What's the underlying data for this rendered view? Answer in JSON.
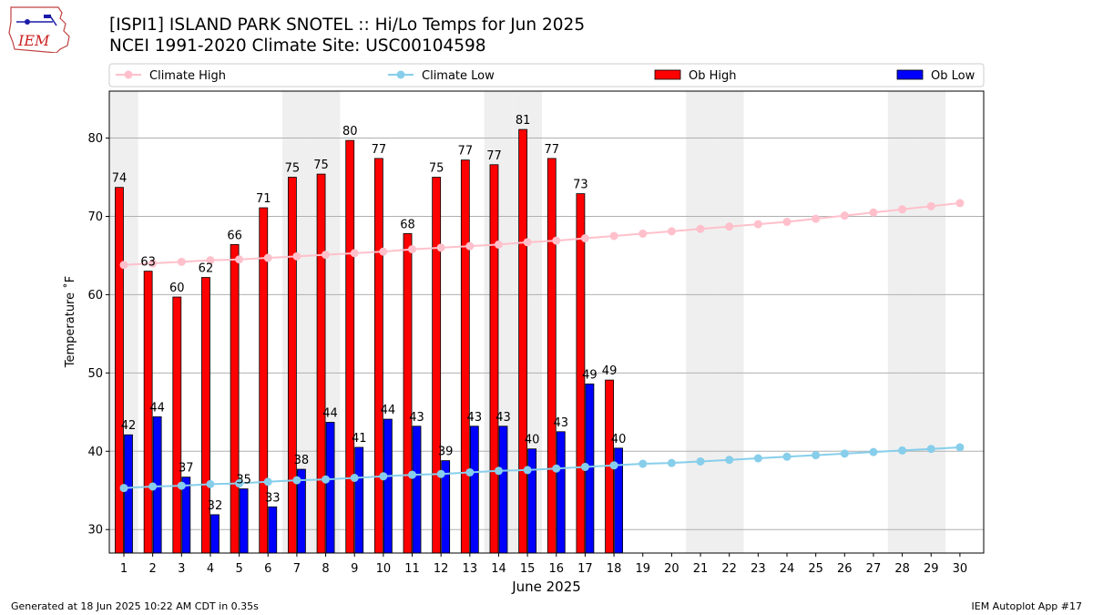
{
  "header": {
    "title_line1": "[ISPI1] ISLAND PARK SNOTEL :: Hi/Lo Temps for Jun 2025",
    "title_line2": "NCEI 1991-2020 Climate Site: USC00104598",
    "logo_text": "IEM"
  },
  "footer": {
    "left": "Generated at 18 Jun 2025 10:22 AM CDT in 0.35s",
    "right": "IEM Autoplot App #17"
  },
  "chart_data": {
    "type": "bar",
    "xlabel": "June 2025",
    "ylabel": "Temperature ˚F",
    "ylim": [
      27,
      86
    ],
    "yticks": [
      30,
      40,
      50,
      60,
      70,
      80
    ],
    "grid": true,
    "legend_position": "top",
    "days": [
      1,
      2,
      3,
      4,
      5,
      6,
      7,
      8,
      9,
      10,
      11,
      12,
      13,
      14,
      15,
      16,
      17,
      18,
      19,
      20,
      21,
      22,
      23,
      24,
      25,
      26,
      27,
      28,
      29,
      30
    ],
    "weekend_days": [
      1,
      7,
      8,
      14,
      15,
      21,
      22,
      28,
      29
    ],
    "series": [
      {
        "name": "Climate High",
        "kind": "line",
        "color": "#ffc0cb",
        "values": [
          63.8,
          64.0,
          64.2,
          64.4,
          64.5,
          64.7,
          64.9,
          65.1,
          65.3,
          65.5,
          65.8,
          66.0,
          66.2,
          66.4,
          66.7,
          66.9,
          67.2,
          67.5,
          67.8,
          68.1,
          68.4,
          68.7,
          69.0,
          69.3,
          69.7,
          70.1,
          70.5,
          70.9,
          71.3,
          71.7
        ]
      },
      {
        "name": "Climate Low",
        "kind": "line",
        "color": "#87ceeb",
        "values": [
          35.3,
          35.5,
          35.6,
          35.8,
          35.9,
          36.1,
          36.3,
          36.4,
          36.6,
          36.8,
          37.0,
          37.1,
          37.3,
          37.5,
          37.6,
          37.8,
          38.0,
          38.2,
          38.4,
          38.5,
          38.7,
          38.9,
          39.1,
          39.3,
          39.5,
          39.7,
          39.9,
          40.1,
          40.3,
          40.5
        ]
      },
      {
        "name": "Ob High",
        "kind": "bar",
        "color": "#ff0000",
        "values": [
          73.7,
          63.0,
          59.7,
          62.2,
          66.4,
          71.1,
          75.0,
          75.4,
          79.7,
          77.4,
          67.8,
          75.0,
          77.2,
          76.6,
          81.1,
          77.4,
          72.9,
          49.1
        ],
        "labels": [
          "74",
          "63",
          "60",
          "62",
          "66",
          "71",
          "75",
          "75",
          "80",
          "77",
          "68",
          "75",
          "77",
          "77",
          "81",
          "77",
          "73",
          "49"
        ]
      },
      {
        "name": "Ob Low",
        "kind": "bar",
        "color": "#0000ff",
        "values": [
          42.1,
          44.4,
          36.7,
          31.9,
          35.2,
          32.9,
          37.7,
          43.7,
          40.5,
          44.1,
          43.2,
          38.8,
          43.2,
          43.2,
          40.3,
          42.5,
          48.6,
          40.4
        ],
        "labels": [
          "42",
          "44",
          "37",
          "32",
          "35",
          "33",
          "38",
          "44",
          "41",
          "44",
          "43",
          "39",
          "43",
          "43",
          "40",
          "43",
          "49",
          "40"
        ]
      }
    ]
  }
}
